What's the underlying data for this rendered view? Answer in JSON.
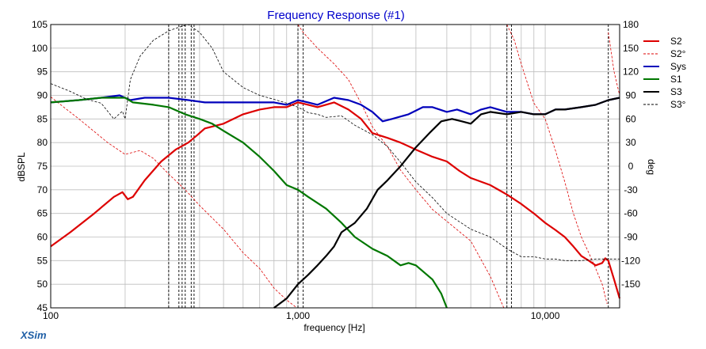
{
  "chart_data": {
    "type": "line",
    "title": "Frequency Response (#1)",
    "xlabel": "frequency [Hz]",
    "ylabel": "dBSPL",
    "y2label": "deg",
    "xscale": "log",
    "xlim": [
      100,
      20000
    ],
    "ylim": [
      45,
      105
    ],
    "y2lim": [
      -180,
      180
    ],
    "x_ticks": [
      100,
      1000,
      10000
    ],
    "x_tick_labels": [
      "100",
      "1,000",
      "10,000"
    ],
    "y_ticks": [
      45,
      50,
      55,
      60,
      65,
      70,
      75,
      80,
      85,
      90,
      95,
      100,
      105
    ],
    "y2_ticks": [
      -150,
      -120,
      -90,
      -60,
      -30,
      0,
      30,
      60,
      90,
      120,
      150,
      180
    ],
    "grid": true,
    "legend_position": "right",
    "crossover_markers_hz": [
      300,
      330,
      340,
      350,
      370,
      380,
      1000,
      1050,
      7000,
      7300,
      18000
    ],
    "brand": "XSim",
    "colors": {
      "title": "#0000cc",
      "brand": "#1f5fa6",
      "grid": "#bdbdbd",
      "S2": "#dd0000",
      "Sys": "#0000bb",
      "S1": "#007700",
      "S3": "#000000"
    },
    "series": [
      {
        "name": "S2",
        "axis": "left",
        "style": "solid",
        "width": 2.2,
        "color": "#dd0000",
        "points": [
          [
            100,
            58
          ],
          [
            120,
            61
          ],
          [
            150,
            65
          ],
          [
            180,
            68.5
          ],
          [
            195,
            69.5
          ],
          [
            205,
            68
          ],
          [
            215,
            68.5
          ],
          [
            240,
            72
          ],
          [
            280,
            76
          ],
          [
            320,
            78.5
          ],
          [
            360,
            80
          ],
          [
            390,
            81.5
          ],
          [
            420,
            83
          ],
          [
            500,
            84
          ],
          [
            600,
            86
          ],
          [
            700,
            87
          ],
          [
            800,
            87.5
          ],
          [
            900,
            87.5
          ],
          [
            1000,
            88.5
          ],
          [
            1100,
            88
          ],
          [
            1200,
            87.5
          ],
          [
            1400,
            88.5
          ],
          [
            1600,
            87
          ],
          [
            1800,
            85
          ],
          [
            2000,
            82
          ],
          [
            2300,
            81
          ],
          [
            2600,
            80
          ],
          [
            3000,
            78.5
          ],
          [
            3500,
            77
          ],
          [
            4000,
            76
          ],
          [
            4500,
            74
          ],
          [
            5000,
            72.5
          ],
          [
            6000,
            71
          ],
          [
            7000,
            69
          ],
          [
            8000,
            67
          ],
          [
            9000,
            65
          ],
          [
            10000,
            63
          ],
          [
            11000,
            61.5
          ],
          [
            12000,
            60
          ],
          [
            13000,
            58
          ],
          [
            14000,
            56
          ],
          [
            15000,
            55
          ],
          [
            16000,
            54
          ],
          [
            17000,
            54.5
          ],
          [
            17500,
            55.5
          ],
          [
            18000,
            55
          ],
          [
            19000,
            51
          ],
          [
            20000,
            47
          ]
        ]
      },
      {
        "name": "S2°",
        "axis": "right",
        "style": "dashed",
        "width": 0.8,
        "color": "#dd0000",
        "points": [
          [
            100,
            88
          ],
          [
            130,
            60
          ],
          [
            170,
            30
          ],
          [
            200,
            15
          ],
          [
            230,
            20
          ],
          [
            260,
            10
          ],
          [
            300,
            -10
          ],
          [
            350,
            -30
          ],
          [
            400,
            -50
          ],
          [
            500,
            -80
          ],
          [
            600,
            -110
          ],
          [
            700,
            -130
          ],
          [
            800,
            -155
          ],
          [
            900,
            -170
          ],
          [
            990,
            -180
          ],
          null,
          [
            1000,
            180
          ],
          [
            1050,
            170
          ],
          [
            1200,
            150
          ],
          [
            1400,
            130
          ],
          [
            1600,
            110
          ],
          [
            1800,
            80
          ],
          [
            2000,
            50
          ],
          [
            2300,
            25
          ],
          [
            2600,
            -5
          ],
          [
            3000,
            -30
          ],
          [
            3500,
            -55
          ],
          [
            4000,
            -70
          ],
          [
            5000,
            -95
          ],
          [
            6000,
            -140
          ],
          [
            6800,
            -180
          ],
          null,
          [
            7000,
            180
          ],
          [
            7500,
            160
          ],
          [
            8000,
            130
          ],
          [
            9000,
            80
          ],
          [
            10000,
            60
          ],
          [
            11000,
            20
          ],
          [
            12000,
            -20
          ],
          [
            13000,
            -60
          ],
          [
            14000,
            -90
          ],
          [
            15000,
            -110
          ],
          [
            16000,
            -130
          ],
          [
            17000,
            -150
          ],
          [
            17800,
            -175
          ],
          null,
          [
            18000,
            170
          ],
          [
            19000,
            120
          ],
          [
            20000,
            90
          ]
        ]
      },
      {
        "name": "Sys",
        "axis": "left",
        "style": "solid",
        "width": 2.2,
        "color": "#0000bb",
        "points": [
          [
            100,
            88.5
          ],
          [
            130,
            89
          ],
          [
            160,
            89.5
          ],
          [
            190,
            90
          ],
          [
            210,
            89
          ],
          [
            240,
            89.5
          ],
          [
            300,
            89.5
          ],
          [
            360,
            89
          ],
          [
            420,
            88.5
          ],
          [
            500,
            88.5
          ],
          [
            600,
            88.5
          ],
          [
            800,
            88.5
          ],
          [
            900,
            88
          ],
          [
            1000,
            89
          ],
          [
            1100,
            88.5
          ],
          [
            1200,
            88
          ],
          [
            1400,
            89.5
          ],
          [
            1600,
            89
          ],
          [
            1800,
            88
          ],
          [
            2000,
            86.5
          ],
          [
            2200,
            84.5
          ],
          [
            2400,
            85
          ],
          [
            2800,
            86
          ],
          [
            3200,
            87.5
          ],
          [
            3500,
            87.5
          ],
          [
            4000,
            86.5
          ],
          [
            4400,
            87
          ],
          [
            5000,
            86
          ],
          [
            5500,
            87
          ],
          [
            6000,
            87.5
          ],
          [
            7000,
            86.5
          ],
          [
            8000,
            86.5
          ],
          [
            9000,
            86
          ],
          [
            10000,
            86
          ],
          [
            11000,
            87
          ],
          [
            12000,
            87
          ],
          [
            14000,
            87.5
          ],
          [
            16000,
            88
          ],
          [
            18000,
            89
          ],
          [
            20000,
            89.5
          ]
        ]
      },
      {
        "name": "S1",
        "axis": "left",
        "style": "solid",
        "width": 2.2,
        "color": "#007700",
        "points": [
          [
            100,
            88.5
          ],
          [
            130,
            89
          ],
          [
            160,
            89.5
          ],
          [
            190,
            89.5
          ],
          [
            200,
            89.5
          ],
          [
            215,
            88.5
          ],
          [
            260,
            88
          ],
          [
            300,
            87.5
          ],
          [
            350,
            86
          ],
          [
            400,
            85
          ],
          [
            450,
            84
          ],
          [
            500,
            82.5
          ],
          [
            600,
            80
          ],
          [
            700,
            77
          ],
          [
            800,
            74
          ],
          [
            900,
            71
          ],
          [
            1000,
            70
          ],
          [
            1100,
            68.5
          ],
          [
            1300,
            66
          ],
          [
            1500,
            63
          ],
          [
            1700,
            60
          ],
          [
            2000,
            57.5
          ],
          [
            2300,
            56
          ],
          [
            2600,
            54
          ],
          [
            2800,
            54.5
          ],
          [
            3000,
            54
          ],
          [
            3500,
            51
          ],
          [
            3800,
            48
          ],
          [
            4000,
            45
          ]
        ]
      },
      {
        "name": "S3",
        "axis": "left",
        "style": "solid",
        "width": 2.2,
        "color": "#000000",
        "points": [
          [
            800,
            45
          ],
          [
            900,
            47
          ],
          [
            1000,
            50
          ],
          [
            1100,
            52
          ],
          [
            1200,
            54
          ],
          [
            1300,
            56
          ],
          [
            1400,
            58
          ],
          [
            1500,
            61
          ],
          [
            1700,
            63
          ],
          [
            1900,
            66
          ],
          [
            2100,
            70
          ],
          [
            2300,
            72
          ],
          [
            2600,
            75
          ],
          [
            3000,
            79
          ],
          [
            3400,
            82
          ],
          [
            3800,
            84.5
          ],
          [
            4200,
            85
          ],
          [
            4600,
            84.5
          ],
          [
            5000,
            84
          ],
          [
            5500,
            86
          ],
          [
            6000,
            86.5
          ],
          [
            7000,
            86
          ],
          [
            8000,
            86.5
          ],
          [
            9000,
            86
          ],
          [
            10000,
            86
          ],
          [
            11000,
            87
          ],
          [
            12000,
            87
          ],
          [
            14000,
            87.5
          ],
          [
            16000,
            88
          ],
          [
            18000,
            89
          ],
          [
            20000,
            89.5
          ]
        ]
      },
      {
        "name": "S3°",
        "axis": "right",
        "style": "dashed",
        "width": 0.8,
        "color": "#000000",
        "points": [
          [
            100,
            105
          ],
          [
            120,
            95
          ],
          [
            140,
            85
          ],
          [
            160,
            80
          ],
          [
            180,
            60
          ],
          [
            195,
            70
          ],
          [
            200,
            60
          ],
          [
            210,
            110
          ],
          [
            230,
            140
          ],
          [
            260,
            160
          ],
          [
            300,
            172
          ],
          [
            340,
            178
          ],
          [
            360,
            180
          ],
          [
            400,
            170
          ],
          [
            450,
            150
          ],
          [
            500,
            120
          ],
          [
            600,
            100
          ],
          [
            700,
            90
          ],
          [
            800,
            85
          ],
          [
            900,
            80
          ],
          [
            1000,
            75
          ],
          [
            1100,
            68
          ],
          [
            1200,
            66
          ],
          [
            1300,
            62
          ],
          [
            1500,
            64
          ],
          [
            1700,
            52
          ],
          [
            2000,
            40
          ],
          [
            2300,
            25
          ],
          [
            2600,
            5
          ],
          [
            3000,
            -20
          ],
          [
            3500,
            -40
          ],
          [
            4000,
            -60
          ],
          [
            5000,
            -80
          ],
          [
            6000,
            -90
          ],
          [
            7000,
            -105
          ],
          [
            8000,
            -115
          ],
          [
            9000,
            -115
          ],
          [
            10000,
            -118
          ],
          [
            11000,
            -118
          ],
          [
            12000,
            -120
          ],
          [
            14000,
            -120
          ],
          [
            16000,
            -118
          ],
          [
            18000,
            -118
          ],
          [
            20000,
            -118
          ]
        ]
      }
    ]
  }
}
